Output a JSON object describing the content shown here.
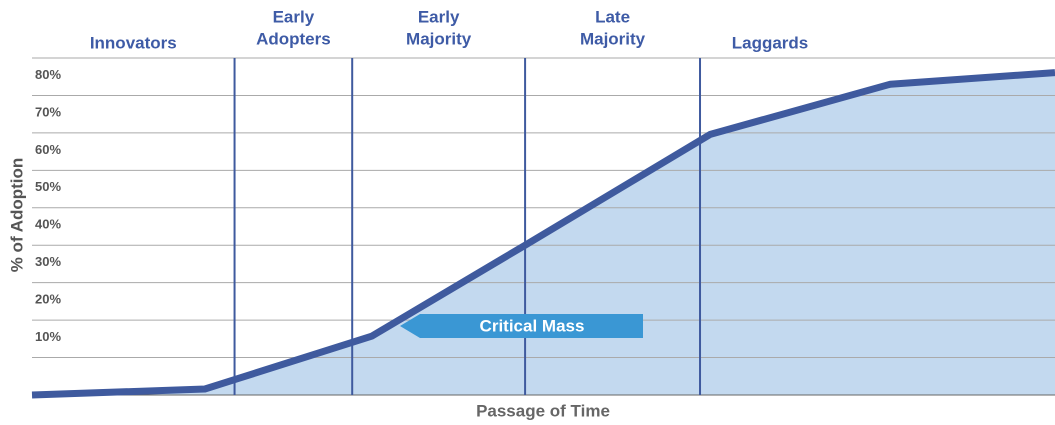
{
  "chart_data": {
    "type": "area",
    "ylabel": "% of Adoption",
    "xlabel": "Passage of Time",
    "x": [
      0,
      16.9,
      33.2,
      48.2,
      66.3,
      83.9,
      100
    ],
    "values": [
      0,
      1.6,
      15.7,
      40,
      69.6,
      83,
      86.1
    ],
    "xlim": [
      0,
      100
    ],
    "ylim": [
      0,
      90
    ],
    "yticks": [
      {
        "value": 10,
        "label": "10%"
      },
      {
        "value": 20,
        "label": "20%"
      },
      {
        "value": 30,
        "label": "30%"
      },
      {
        "value": 40,
        "label": "40%"
      },
      {
        "value": 50,
        "label": "50%"
      },
      {
        "value": 60,
        "label": "60%"
      },
      {
        "value": 70,
        "label": "70%"
      },
      {
        "value": 80,
        "label": "80%"
      }
    ],
    "grid": true,
    "color": "#3f5a9e",
    "fill": "#c3d9ef",
    "dividers": [
      19.8,
      31.3,
      48.2,
      65.3
    ],
    "phases": [
      [
        "Innovators"
      ],
      [
        "Early",
        "Adopters"
      ],
      [
        "Early",
        "Majority"
      ],
      [
        "Late",
        "Majority"
      ],
      [
        "Laggards"
      ]
    ],
    "annotation": "Critical Mass"
  }
}
